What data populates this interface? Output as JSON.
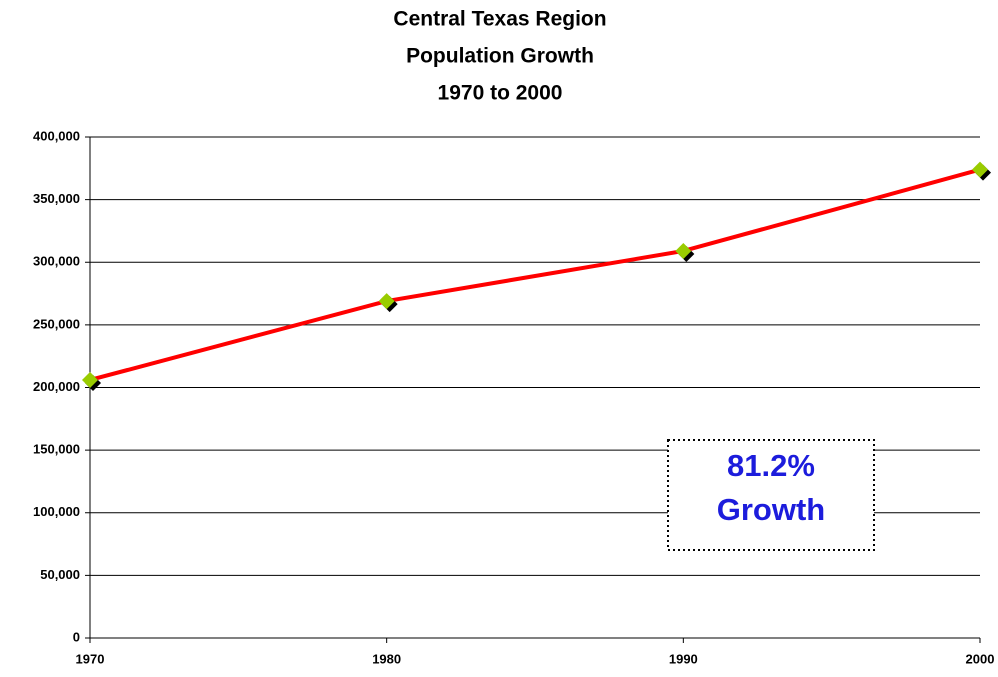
{
  "chart_data": {
    "type": "line",
    "title": [
      "Central Texas Region",
      "Population Growth",
      "1970 to 2000"
    ],
    "annotation": [
      "81.2%",
      "Growth"
    ],
    "x": [
      1970,
      1980,
      1990,
      2000
    ],
    "series": [
      {
        "name": "Population",
        "color": "#ff0000",
        "marker_color": "#99cc00",
        "values": [
          206000,
          269000,
          309000,
          374000
        ]
      }
    ],
    "xlim": [
      1970,
      2000
    ],
    "xticks": [
      1970,
      1980,
      1990,
      2000
    ],
    "ylim": [
      0,
      400000
    ],
    "yticks": [
      0,
      {
        "value": 50000,
        "label": "50,000"
      },
      {
        "value": 100000,
        "label": "100,000"
      },
      {
        "value": 150000,
        "label": "150,000"
      },
      {
        "value": 200000,
        "label": "200,000"
      },
      {
        "value": 250000,
        "label": "250,000"
      },
      {
        "value": 300000,
        "label": "300,000"
      },
      {
        "value": 350000,
        "label": "350,000"
      },
      {
        "value": 400000,
        "label": "400,000"
      }
    ],
    "grid": true
  }
}
